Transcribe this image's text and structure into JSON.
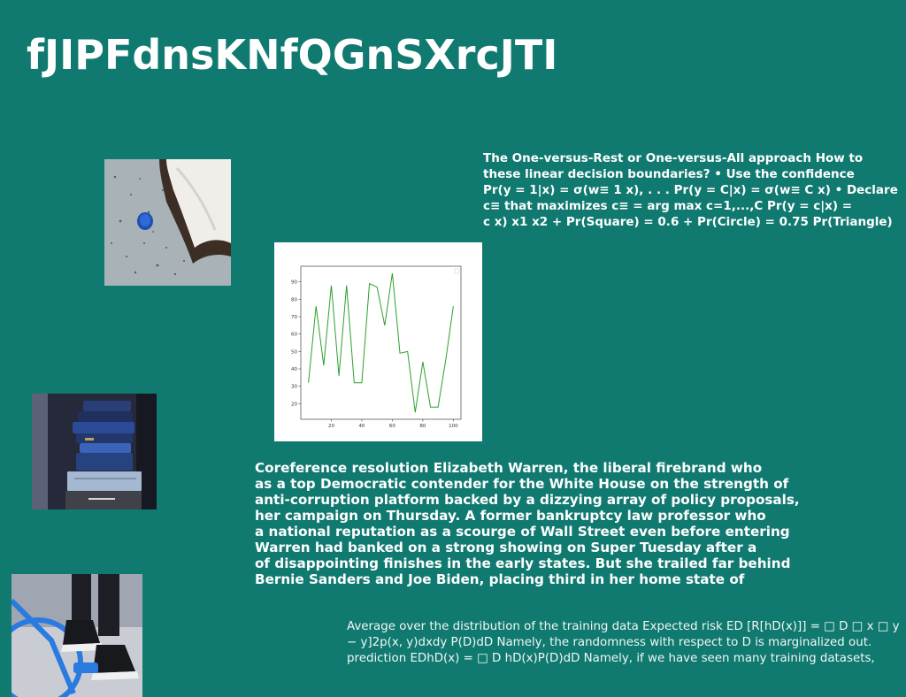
{
  "page": {
    "title": "fJIPFdnsKNfQGnSXrcJTI",
    "background_color": "#107a70"
  },
  "ovr_text": {
    "lines": [
      "The One-versus-Rest or One-versus-All approach How to",
      "these linear decision boundaries? • Use the confidence",
      "Pr(y = 1|x) = σ(w≡ 1 x), . . . Pr(y = C|x) = σ(w≡ C x) • Declare",
      "c≡ that maximizes c≡ = arg max c=1,...,C Pr(y = c|x) =",
      "c x) x1 x2 + Pr(Square) = 0.6 + Pr(Circle) = 0.75 Pr(Triangle)"
    ]
  },
  "coref_text": {
    "lines": [
      "Coreference resolution Elizabeth Warren, the liberal firebrand who",
      "as a top Democratic contender for the White House on the strength of",
      "anti-corruption platform backed by a dizzying array of policy proposals,",
      "her campaign on Thursday. A former bankruptcy law professor who",
      "a national reputation as a scourge of Wall Street even before entering",
      "Warren had banked on a strong showing on Super Tuesday after a",
      "of disappointing finishes in the early states. But she trailed far behind",
      "Bernie Sanders and Joe Biden, placing third in her home state of"
    ]
  },
  "risk_text": {
    "lines": [
      "Average over the distribution of the training data Expected risk ED [R[hD(x)]] = □ D □ x □ y",
      "− y]2p(x, y)dxdy P(D)dD Namely, the randomness with respect to D is marginalized out.",
      "prediction EDhD(x) = □ D hD(x)P(D)dD Namely, if we have seen many training datasets,"
    ]
  },
  "images": {
    "pillow": "photo of a white pillow and a blue tin on a speckled grey surface",
    "books": "photo of a stack of old blue books on a shelf",
    "shoes": "photo of black sneakers next to a blue bicycle"
  },
  "chart_data": {
    "type": "line",
    "title": "",
    "xlabel": "",
    "ylabel": "",
    "x": [
      5,
      10,
      15,
      20,
      25,
      30,
      35,
      40,
      45,
      50,
      55,
      60,
      65,
      70,
      75,
      80,
      85,
      90,
      95,
      100
    ],
    "series": [
      {
        "color": "#2ca02c",
        "values": [
          32,
          76,
          42,
          88,
          36,
          88,
          32,
          32,
          89,
          87,
          65,
          95,
          49,
          50,
          15,
          44,
          18,
          18,
          45,
          76
        ]
      }
    ],
    "xticks": [
      20,
      40,
      60,
      80,
      100
    ],
    "yticks": [
      20,
      30,
      40,
      50,
      60,
      70,
      80,
      90
    ],
    "xlim": [
      0,
      105
    ],
    "ylim": [
      11,
      99
    ],
    "grid": false,
    "legend": "top-right"
  }
}
